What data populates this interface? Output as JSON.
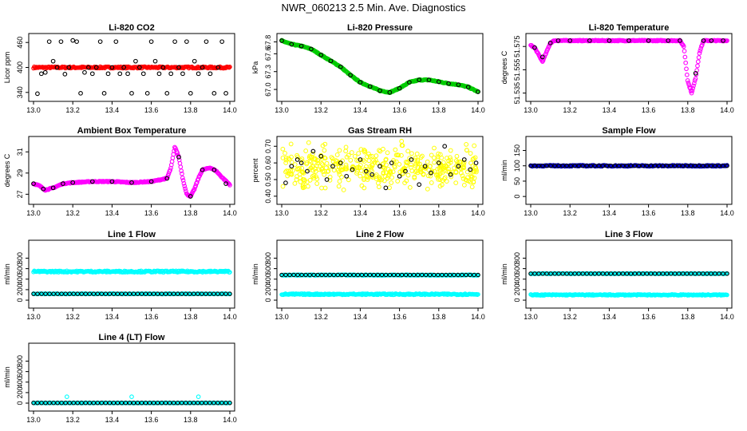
{
  "title": "NWR_060213  2.5 Min. Ave. Diagnostics",
  "colors": {
    "black": "#000000",
    "red": "#ff0000",
    "green": "#00cc00",
    "magenta": "#ff00ff",
    "yellow": "#ffff00",
    "blue": "#0000cc",
    "cyan": "#00ffff"
  },
  "chart_data": [
    {
      "type": "scatter",
      "title": "Li-820 CO2",
      "ylabel": "Licor ppm",
      "xlim": [
        13.0,
        14.0
      ],
      "ylim": [
        330,
        470
      ],
      "xticks": [
        "13.0",
        "13.2",
        "13.4",
        "13.6",
        "13.8",
        "14.0"
      ],
      "yticks": [
        {
          "v": 340,
          "label": "340"
        },
        {
          "v": 400,
          "label": "400"
        },
        {
          "v": 460,
          "label": "460"
        }
      ],
      "series": [
        {
          "name": "licor_co2_fill",
          "color": "red",
          "style": "dense_band",
          "y": [
            398,
            402
          ]
        },
        {
          "name": "licor_co2",
          "color": "black",
          "style": "open_circles",
          "x": [
            13.02,
            13.04,
            13.06,
            13.08,
            13.1,
            13.12,
            13.14,
            13.16,
            13.18,
            13.2,
            13.22,
            13.24,
            13.26,
            13.28,
            13.3,
            13.32,
            13.34,
            13.36,
            13.38,
            13.4,
            13.42,
            13.44,
            13.46,
            13.48,
            13.5,
            13.52,
            13.54,
            13.56,
            13.58,
            13.6,
            13.62,
            13.64,
            13.66,
            13.68,
            13.7,
            13.72,
            13.74,
            13.76,
            13.78,
            13.8,
            13.82,
            13.84,
            13.86,
            13.88,
            13.9,
            13.92,
            13.94,
            13.96,
            13.98
          ],
          "y": [
            337,
            385,
            388,
            462,
            415,
            400,
            462,
            384,
            400,
            465,
            462,
            338,
            388,
            400,
            385,
            400,
            462,
            338,
            385,
            400,
            462,
            385,
            400,
            385,
            338,
            415,
            400,
            385,
            338,
            462,
            415,
            385,
            400,
            338,
            385,
            462,
            400,
            385,
            462,
            338,
            415,
            385,
            400,
            462,
            385,
            338,
            400,
            462,
            338
          ]
        }
      ]
    },
    {
      "type": "scatter",
      "title": "Li-820 Pressure",
      "ylabel": "kPa",
      "xlim": [
        13.0,
        14.0
      ],
      "ylim": [
        66.88,
        67.86
      ],
      "xticks": [
        "13.0",
        "13.2",
        "13.4",
        "13.6",
        "13.8",
        "14.0"
      ],
      "yticks": [
        {
          "v": 67.0,
          "label": "67.0"
        },
        {
          "v": 67.3,
          "label": "67.3"
        },
        {
          "v": 67.6,
          "label": "67.6"
        },
        {
          "v": 67.8,
          "label": "67.8"
        }
      ],
      "series": [
        {
          "name": "pressure",
          "color": "green",
          "style": "dense_line",
          "x": [
            13.0,
            13.05,
            13.1,
            13.15,
            13.2,
            13.25,
            13.3,
            13.35,
            13.4,
            13.45,
            13.5,
            13.55,
            13.6,
            13.65,
            13.7,
            13.75,
            13.8,
            13.85,
            13.9,
            13.95,
            14.0
          ],
          "y": [
            67.82,
            67.76,
            67.73,
            67.68,
            67.58,
            67.48,
            67.38,
            67.24,
            67.12,
            67.05,
            66.98,
            66.95,
            67.02,
            67.12,
            67.16,
            67.16,
            67.13,
            67.1,
            67.08,
            67.04,
            66.96
          ]
        },
        {
          "name": "pressure_ave",
          "color": "black",
          "style": "open_circles",
          "x": [
            13.0,
            13.05,
            13.1,
            13.15,
            13.2,
            13.25,
            13.3,
            13.35,
            13.4,
            13.45,
            13.5,
            13.55,
            13.6,
            13.65,
            13.7,
            13.75,
            13.8,
            13.85,
            13.9,
            13.95,
            14.0
          ],
          "y": [
            67.82,
            67.76,
            67.73,
            67.68,
            67.58,
            67.48,
            67.38,
            67.24,
            67.12,
            67.05,
            66.98,
            66.95,
            67.02,
            67.12,
            67.16,
            67.16,
            67.13,
            67.1,
            67.08,
            67.04,
            66.96
          ]
        }
      ]
    },
    {
      "type": "scatter",
      "title": "Li-820 Temperature",
      "ylabel": "degrees C",
      "xlim": [
        13.0,
        14.0
      ],
      "ylim": [
        51.532,
        51.582
      ],
      "xticks": [
        "13.0",
        "13.2",
        "13.4",
        "13.6",
        "13.8",
        "14.0"
      ],
      "yticks": [
        {
          "v": 51.535,
          "label": "51.535"
        },
        {
          "v": 51.555,
          "label": "51.555"
        },
        {
          "v": 51.575,
          "label": "51.575"
        }
      ],
      "series": [
        {
          "name": "licor_temp",
          "color": "magenta",
          "style": "dense_line",
          "x": [
            13.0,
            13.02,
            13.04,
            13.06,
            13.08,
            13.1,
            13.12,
            13.14,
            13.2,
            13.3,
            13.4,
            13.5,
            13.6,
            13.7,
            13.76,
            13.78,
            13.8,
            13.82,
            13.84,
            13.86,
            13.88,
            13.9,
            13.95,
            14.0
          ],
          "y": [
            51.576,
            51.574,
            51.568,
            51.562,
            51.57,
            51.578,
            51.58,
            51.58,
            51.58,
            51.58,
            51.58,
            51.58,
            51.58,
            51.58,
            51.58,
            51.575,
            51.545,
            51.535,
            51.548,
            51.57,
            51.58,
            51.58,
            51.58,
            51.58
          ]
        },
        {
          "name": "licor_temp_ave",
          "color": "black",
          "style": "open_circles",
          "x": [
            13.02,
            13.06,
            13.1,
            13.14,
            13.2,
            13.3,
            13.4,
            13.5,
            13.6,
            13.7,
            13.76,
            13.84,
            13.88,
            13.92,
            13.98
          ],
          "y": [
            51.574,
            51.566,
            51.578,
            51.58,
            51.58,
            51.58,
            51.58,
            51.58,
            51.58,
            51.58,
            51.58,
            51.552,
            51.58,
            51.58,
            51.58
          ]
        }
      ]
    },
    {
      "type": "scatter",
      "title": "Ambient Box Temperature",
      "ylabel": "degrees C",
      "xlim": [
        13.0,
        14.0
      ],
      "ylim": [
        26.5,
        32.0
      ],
      "xticks": [
        "13.0",
        "13.2",
        "13.4",
        "13.6",
        "13.8",
        "14.0"
      ],
      "yticks": [
        {
          "v": 27,
          "label": "27"
        },
        {
          "v": 29,
          "label": "29"
        },
        {
          "v": 31,
          "label": "31"
        }
      ],
      "series": [
        {
          "name": "box_temp",
          "color": "magenta",
          "style": "dense_line",
          "x": [
            13.0,
            13.03,
            13.06,
            13.1,
            13.15,
            13.2,
            13.3,
            13.4,
            13.5,
            13.6,
            13.68,
            13.7,
            13.72,
            13.74,
            13.76,
            13.78,
            13.8,
            13.82,
            13.84,
            13.86,
            13.9,
            13.93,
            13.96,
            14.0
          ],
          "y": [
            28.0,
            27.8,
            27.4,
            27.6,
            28.0,
            28.1,
            28.2,
            28.2,
            28.1,
            28.2,
            28.5,
            29.5,
            31.5,
            30.5,
            28.5,
            27.0,
            26.8,
            27.5,
            28.5,
            29.3,
            29.5,
            29.2,
            28.6,
            27.9
          ]
        },
        {
          "name": "box_temp_ave",
          "color": "black",
          "style": "open_circles",
          "x": [
            13.0,
            13.05,
            13.1,
            13.15,
            13.2,
            13.3,
            13.4,
            13.5,
            13.6,
            13.68,
            13.74,
            13.8,
            13.86,
            13.92,
            13.98
          ],
          "y": [
            28.0,
            27.5,
            27.6,
            28.0,
            28.1,
            28.2,
            28.2,
            28.1,
            28.2,
            28.5,
            30.5,
            26.8,
            29.3,
            29.3,
            28.0
          ]
        }
      ]
    },
    {
      "type": "scatter",
      "title": "Gas Stream RH",
      "ylabel": "percent",
      "xlim": [
        13.0,
        14.0
      ],
      "ylim": [
        0.38,
        0.73
      ],
      "xticks": [
        "13.0",
        "13.2",
        "13.4",
        "13.6",
        "13.8",
        "14.0"
      ],
      "yticks": [
        {
          "v": 0.4,
          "label": "0.40"
        },
        {
          "v": 0.5,
          "label": "0.50"
        },
        {
          "v": 0.6,
          "label": "0.60"
        },
        {
          "v": 0.7,
          "label": "0.70"
        }
      ],
      "series": [
        {
          "name": "rh",
          "color": "yellow",
          "style": "scatter_cloud",
          "center": 0.57,
          "spread": 0.13
        },
        {
          "name": "rh_ave",
          "color": "black",
          "style": "open_circles",
          "x": [
            13.02,
            13.05,
            13.08,
            13.1,
            13.13,
            13.16,
            13.2,
            13.23,
            13.26,
            13.3,
            13.33,
            13.36,
            13.4,
            13.43,
            13.46,
            13.5,
            13.53,
            13.56,
            13.6,
            13.63,
            13.66,
            13.7,
            13.73,
            13.76,
            13.8,
            13.83,
            13.86,
            13.9,
            13.93,
            13.96,
            13.99
          ],
          "y": [
            0.48,
            0.58,
            0.62,
            0.6,
            0.55,
            0.67,
            0.64,
            0.5,
            0.58,
            0.6,
            0.52,
            0.56,
            0.62,
            0.55,
            0.53,
            0.58,
            0.45,
            0.6,
            0.52,
            0.55,
            0.62,
            0.47,
            0.58,
            0.54,
            0.6,
            0.7,
            0.53,
            0.58,
            0.62,
            0.56,
            0.6
          ]
        }
      ]
    },
    {
      "type": "scatter",
      "title": "Sample Flow",
      "ylabel": "ml/min",
      "xlim": [
        13.0,
        14.0
      ],
      "ylim": [
        -10,
        180
      ],
      "xticks": [
        "13.0",
        "13.2",
        "13.4",
        "13.6",
        "13.8",
        "14.0"
      ],
      "yticks": [
        {
          "v": 0,
          "label": "0"
        },
        {
          "v": 50,
          "label": "50"
        },
        {
          "v": 100,
          "label": "100"
        },
        {
          "v": 150,
          "label": "150"
        }
      ],
      "series": [
        {
          "name": "sample_flow",
          "color": "blue",
          "style": "dense_band",
          "y": [
            98,
            102
          ]
        },
        {
          "name": "sample_flow_ave",
          "color": "black",
          "style": "open_circles_const",
          "y": 100,
          "n": 50
        }
      ]
    },
    {
      "type": "scatter",
      "title": "Line 1 Flow",
      "ylabel": "ml/min",
      "xlim": [
        13.0,
        14.0
      ],
      "ylim": [
        -60,
        1050
      ],
      "xticks": [
        "13.0",
        "13.2",
        "13.4",
        "13.6",
        "13.8",
        "14.0"
      ],
      "yticks": [
        {
          "v": 0,
          "label": "0"
        },
        {
          "v": 200,
          "label": "200"
        },
        {
          "v": 400,
          "label": "400"
        },
        {
          "v": 600,
          "label": "600"
        },
        {
          "v": 800,
          "label": "800"
        }
      ],
      "series": [
        {
          "name": "line1_flow",
          "color": "cyan",
          "style": "dense_band",
          "y": [
            530,
            560
          ]
        },
        {
          "name": "line1_flow_low",
          "color": "cyan",
          "style": "dense_band",
          "y": [
            115,
            125
          ]
        },
        {
          "name": "line1_flow_ave",
          "color": "black",
          "style": "open_circles_const",
          "y": 120,
          "n": 50
        }
      ]
    },
    {
      "type": "scatter",
      "title": "Line 2 Flow",
      "ylabel": "ml/min",
      "xlim": [
        13.0,
        14.0
      ],
      "ylim": [
        -60,
        1050
      ],
      "xticks": [
        "13.0",
        "13.2",
        "13.4",
        "13.6",
        "13.8",
        "14.0"
      ],
      "yticks": [
        {
          "v": 0,
          "label": "0"
        },
        {
          "v": 200,
          "label": "200"
        },
        {
          "v": 400,
          "label": "400"
        },
        {
          "v": 600,
          "label": "600"
        },
        {
          "v": 800,
          "label": "800"
        }
      ],
      "series": [
        {
          "name": "line2_flow",
          "color": "cyan",
          "style": "dense_band",
          "y": [
            100,
            125
          ]
        },
        {
          "name": "line2_flow_high",
          "color": "cyan",
          "style": "dense_band",
          "y": [
            470,
            485
          ]
        },
        {
          "name": "line2_flow_ave",
          "color": "black",
          "style": "open_circles_const",
          "y": 480,
          "n": 50
        }
      ]
    },
    {
      "type": "scatter",
      "title": "Line 3 Flow",
      "ylabel": "ml/min",
      "xlim": [
        13.0,
        14.0
      ],
      "ylim": [
        -60,
        1050
      ],
      "xticks": [
        "13.0",
        "13.2",
        "13.4",
        "13.6",
        "13.8",
        "14.0"
      ],
      "yticks": [
        {
          "v": 0,
          "label": "0"
        },
        {
          "v": 200,
          "label": "200"
        },
        {
          "v": 400,
          "label": "400"
        },
        {
          "v": 600,
          "label": "600"
        },
        {
          "v": 800,
          "label": "800"
        }
      ],
      "series": [
        {
          "name": "line3_flow",
          "color": "cyan",
          "style": "dense_band",
          "y": [
            90,
            110
          ]
        },
        {
          "name": "line3_flow_high",
          "color": "cyan",
          "style": "dense_band",
          "y": [
            500,
            510
          ]
        },
        {
          "name": "line3_flow_ave",
          "color": "black",
          "style": "open_circles_const",
          "y": 505,
          "n": 50
        }
      ]
    },
    {
      "type": "scatter",
      "title": "Line 4 (LT) Flow",
      "ylabel": "ml/min",
      "xlim": [
        13.0,
        14.0
      ],
      "ylim": [
        -60,
        1050
      ],
      "xticks": [
        "13.0",
        "13.2",
        "13.4",
        "13.6",
        "13.8",
        "14.0"
      ],
      "yticks": [
        {
          "v": 0,
          "label": "0"
        },
        {
          "v": 200,
          "label": "200"
        },
        {
          "v": 400,
          "label": "400"
        },
        {
          "v": 600,
          "label": "600"
        },
        {
          "v": 800,
          "label": "800"
        }
      ],
      "series": [
        {
          "name": "line4_flow",
          "color": "cyan",
          "style": "dense_band",
          "y": [
            0,
            8
          ]
        },
        {
          "name": "line4_flow_spikes",
          "color": "cyan",
          "style": "open_circles",
          "x": [
            13.17,
            13.5,
            13.84
          ],
          "y": [
            120,
            120,
            120
          ]
        },
        {
          "name": "line4_flow_ave",
          "color": "black",
          "style": "open_circles_const",
          "y": 4,
          "n": 50
        }
      ]
    }
  ]
}
